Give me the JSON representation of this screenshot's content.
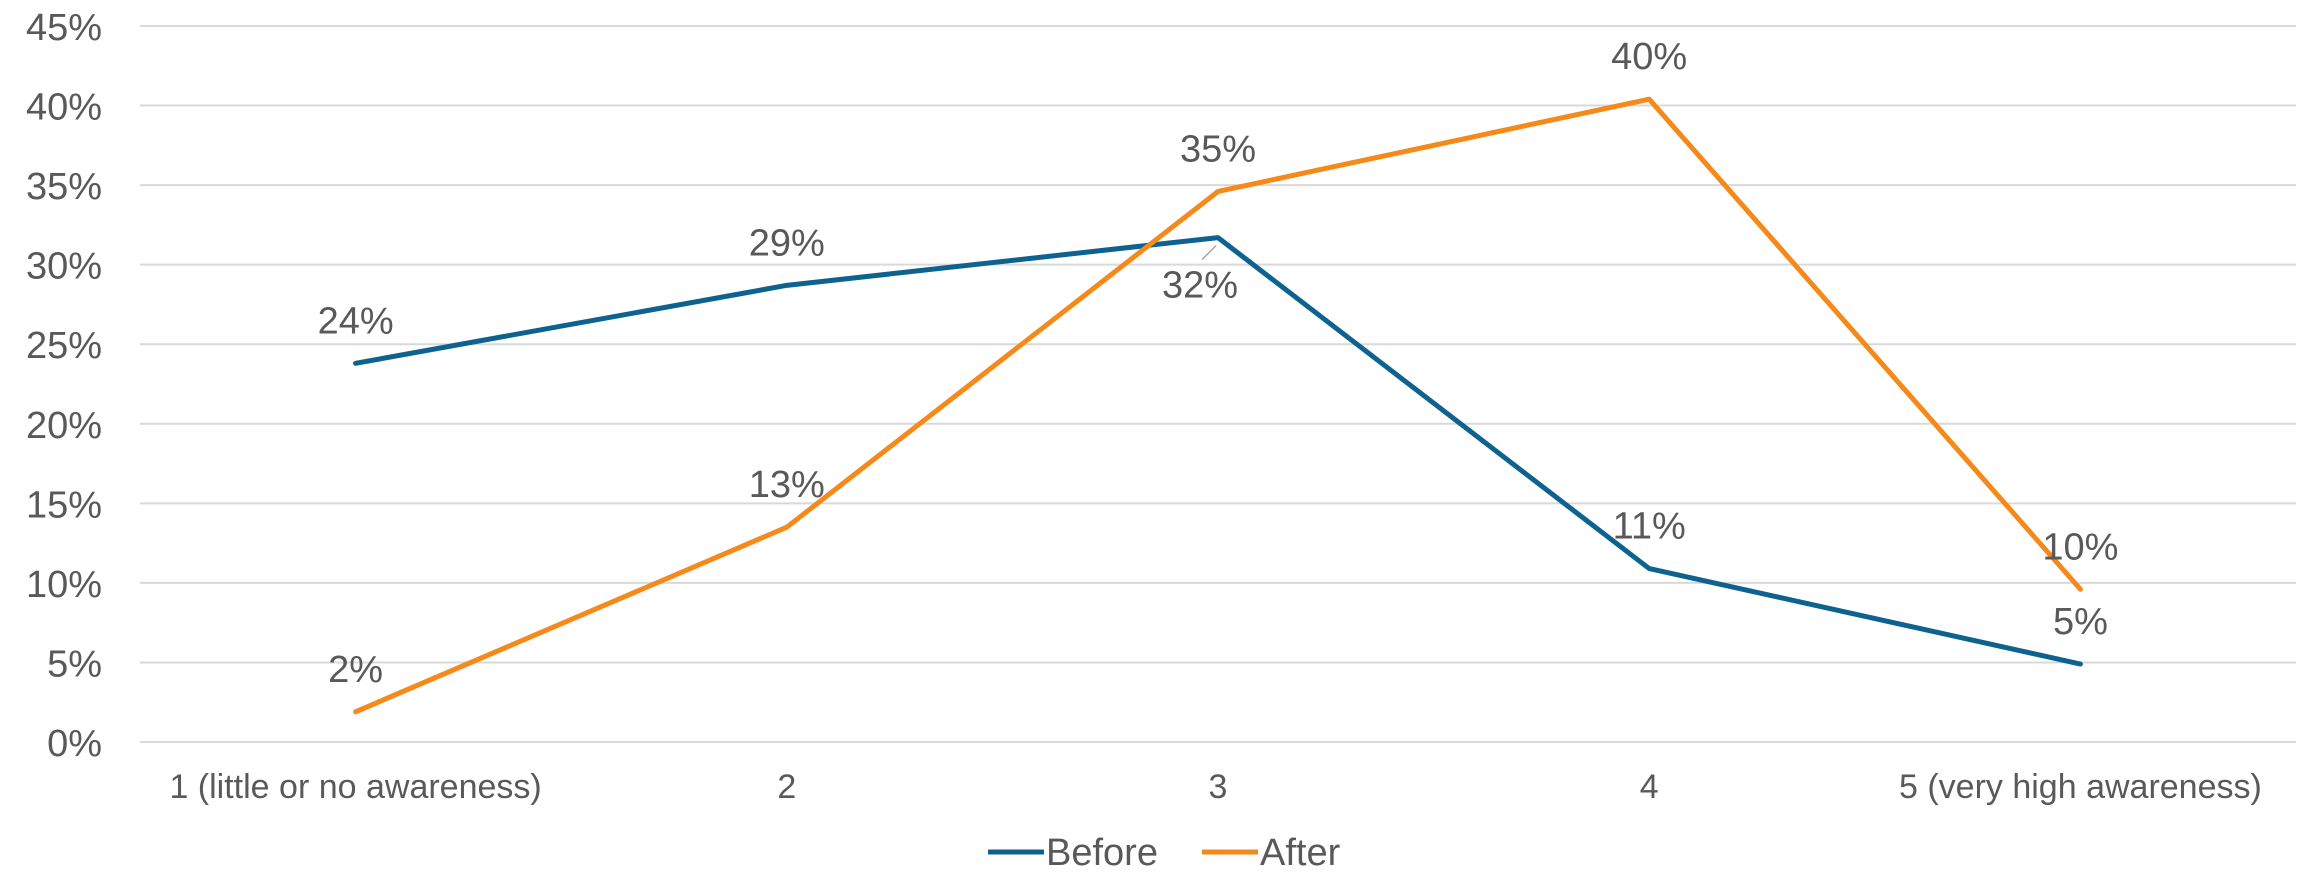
{
  "chart_data": {
    "type": "line",
    "title": "",
    "xlabel": "",
    "ylabel": "",
    "categories": [
      "1 (little or no awareness)",
      "2",
      "3",
      "4",
      "5 (very high awareness)"
    ],
    "ylim": [
      0,
      45
    ],
    "y_ticks": [
      0,
      5,
      10,
      15,
      20,
      25,
      30,
      35,
      40,
      45
    ],
    "y_tick_labels": [
      "0%",
      "5%",
      "10%",
      "15%",
      "20%",
      "25%",
      "30%",
      "35%",
      "40%",
      "45%"
    ],
    "grid": true,
    "legend_position": "bottom",
    "series": [
      {
        "name": "Before",
        "color": "#0e6290",
        "values": [
          23.8,
          28.7,
          31.7,
          10.9,
          4.9
        ],
        "labels": [
          "24%",
          "29%",
          "32%",
          "11%",
          "5%"
        ]
      },
      {
        "name": "After",
        "color": "#f5891a",
        "values": [
          1.9,
          13.5,
          34.6,
          40.4,
          9.6
        ],
        "labels": [
          "2%",
          "13%",
          "35%",
          "40%",
          "10%"
        ]
      }
    ]
  }
}
